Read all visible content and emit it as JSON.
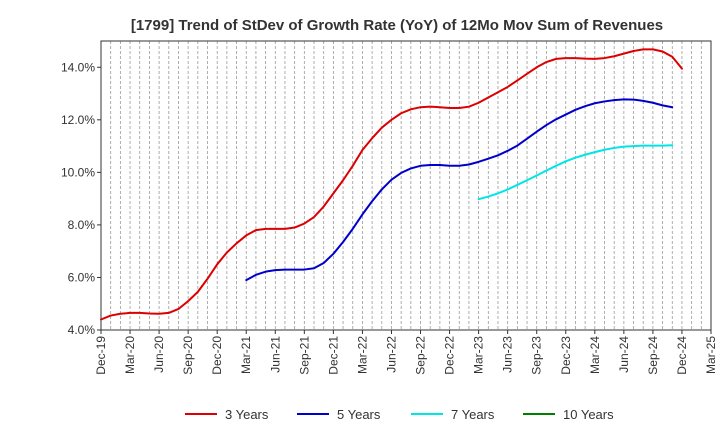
{
  "chart_data": {
    "type": "line",
    "title": "[1799]  Trend of StDev of Growth Rate (YoY) of 12Mo Mov Sum of Revenues",
    "xlabel": "",
    "ylabel": "",
    "ylim": [
      4.0,
      15.0
    ],
    "y_ticks": [
      4.0,
      6.0,
      8.0,
      10.0,
      12.0,
      14.0
    ],
    "y_tick_labels": [
      "4.0%",
      "6.0%",
      "8.0%",
      "10.0%",
      "12.0%",
      "14.0%"
    ],
    "x_tick_labels": [
      "Dec-19",
      "Mar-20",
      "Jun-20",
      "Sep-20",
      "Dec-20",
      "Mar-21",
      "Jun-21",
      "Sep-21",
      "Dec-21",
      "Mar-22",
      "Jun-22",
      "Sep-22",
      "Dec-22",
      "Mar-23",
      "Jun-23",
      "Sep-23",
      "Dec-23",
      "Mar-24",
      "Jun-24",
      "Sep-24",
      "Dec-24",
      "Mar-25"
    ],
    "x_start": "Dec-19",
    "x_month_span": 63,
    "grid": "vertical-dashed",
    "legend_position": "bottom",
    "series": [
      {
        "name": "3 Years",
        "color": "#dd0000",
        "start_month_index": 0,
        "values": [
          4.4,
          4.55,
          4.62,
          4.65,
          4.65,
          4.63,
          4.62,
          4.65,
          4.8,
          5.1,
          5.45,
          5.95,
          6.5,
          6.95,
          7.3,
          7.6,
          7.8,
          7.85,
          7.85,
          7.85,
          7.9,
          8.05,
          8.3,
          8.7,
          9.2,
          9.7,
          10.25,
          10.85,
          11.3,
          11.7,
          12.0,
          12.25,
          12.4,
          12.48,
          12.5,
          12.48,
          12.45,
          12.45,
          12.5,
          12.65,
          12.85,
          13.05,
          13.25,
          13.5,
          13.75,
          14.0,
          14.2,
          14.32,
          14.35,
          14.35,
          14.33,
          14.32,
          14.35,
          14.42,
          14.52,
          14.62,
          14.68,
          14.68,
          14.6,
          14.4,
          13.95
        ]
      },
      {
        "name": "5 Years",
        "color": "#0000cc",
        "start_month_index": 15,
        "values": [
          5.9,
          6.1,
          6.22,
          6.28,
          6.3,
          6.3,
          6.3,
          6.35,
          6.55,
          6.9,
          7.35,
          7.85,
          8.4,
          8.9,
          9.35,
          9.72,
          9.98,
          10.15,
          10.25,
          10.28,
          10.28,
          10.25,
          10.25,
          10.3,
          10.4,
          10.52,
          10.65,
          10.82,
          11.02,
          11.28,
          11.55,
          11.8,
          12.02,
          12.2,
          12.38,
          12.52,
          12.63,
          12.7,
          12.75,
          12.78,
          12.77,
          12.72,
          12.65,
          12.55,
          12.48
        ]
      },
      {
        "name": "7 Years",
        "color": "#00e5e5",
        "start_month_index": 39,
        "values": [
          8.98,
          9.08,
          9.2,
          9.35,
          9.52,
          9.7,
          9.88,
          10.07,
          10.25,
          10.42,
          10.56,
          10.67,
          10.77,
          10.86,
          10.93,
          10.98,
          11.0,
          11.02,
          11.02,
          11.02,
          11.03
        ]
      },
      {
        "name": "10 Years",
        "color": "#008000",
        "start_month_index": 0,
        "values": []
      }
    ]
  }
}
